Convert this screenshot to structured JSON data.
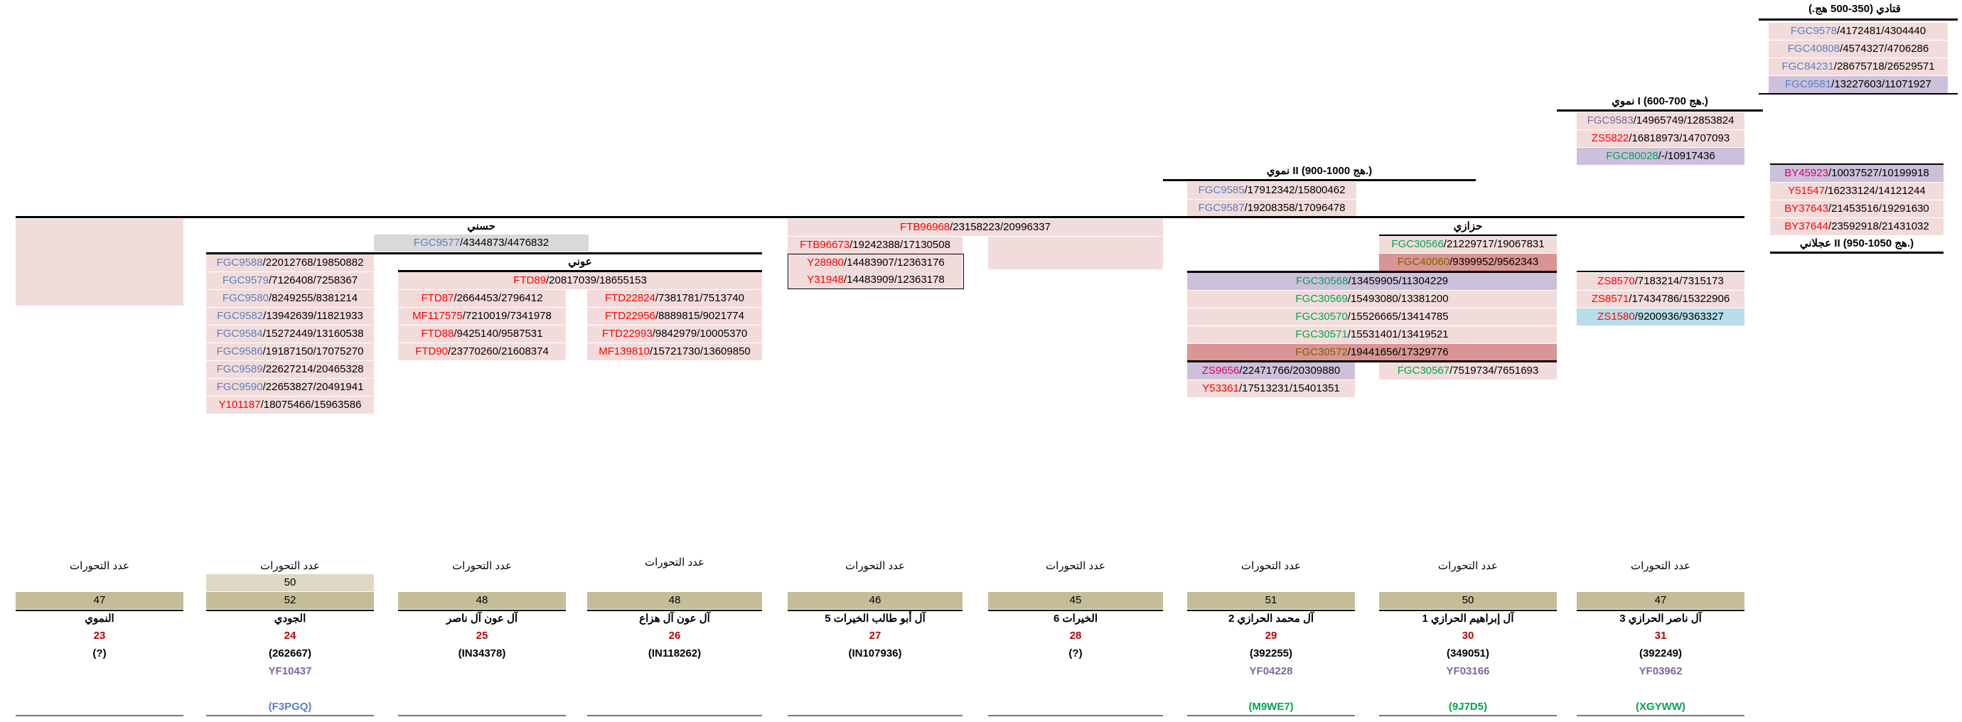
{
  "headers": {
    "qatadi": "قتادي (350-500 هج.)",
    "numawi1": "نموي I (600-700 هج.)",
    "numawi2": "نموي II (900-1000 هج.)",
    "ajlani2": "عجلاني II (950-1050 هج.)",
    "hasani": "حسني",
    "awni": "عوني",
    "hazzazi": "حزازي"
  },
  "qatadi_rows": [
    {
      "snp": "FGC9578",
      "pos": "/4172481/4304440"
    },
    {
      "snp": "FGC40808",
      "pos": "/4574327/4706286"
    },
    {
      "snp": "FGC84231",
      "pos": "/28675718/26529571"
    },
    {
      "snp": "FGC9581",
      "pos": "/13227603/11071927"
    }
  ],
  "numawi1_rows": [
    {
      "snp": "FGC9583",
      "pos": "/14965749/12853824"
    },
    {
      "snp": "ZS5822",
      "pos": "/16818973/14707093"
    },
    {
      "snp": "FGC80028",
      "pos": "/-/10917436"
    }
  ],
  "numawi2_rows": [
    {
      "snp": "FGC9585",
      "pos": "/17912342/15800462"
    },
    {
      "snp": "FGC9587",
      "pos": "/19208358/17096478"
    }
  ],
  "by_rows": [
    {
      "snp": "BY45923",
      "pos": "/10037527/10199918"
    },
    {
      "snp": "Y51547",
      "pos": "/16233124/14121244"
    },
    {
      "snp": "BY37643",
      "pos": "/21453516/19291630"
    },
    {
      "snp": "BY37644",
      "pos": "/23592918/21431032"
    }
  ],
  "hasani_row": {
    "snp": "FGC9577",
    "pos": "/4344873/4476832"
  },
  "awni_row": {
    "snp": "FTD89",
    "pos": "/20817039/18655153"
  },
  "juudi_rows": [
    {
      "snp": "FGC9588",
      "pos": "/22012768/19850882"
    },
    {
      "snp": "FGC9579",
      "pos": "/7126408/7258367"
    },
    {
      "snp": "FGC9580",
      "pos": "/8249255/8381214"
    },
    {
      "snp": "FGC9582",
      "pos": "/13942639/11821933"
    },
    {
      "snp": "FGC9584",
      "pos": "/15272449/13160538"
    },
    {
      "snp": "FGC9586",
      "pos": "/19187150/17075270"
    },
    {
      "snp": "FGC9589",
      "pos": "/22627214/20465328"
    },
    {
      "snp": "FGC9590",
      "pos": "/22653827/20491941"
    },
    {
      "snp": "Y101187",
      "pos": "/18075466/15963586"
    }
  ],
  "awn_nasir_rows": [
    {
      "snp": "FTD87",
      "pos": "/2664453/2796412"
    },
    {
      "snp": "MF117575",
      "pos": "/7210019/7341978"
    },
    {
      "snp": "FTD88",
      "pos": "/9425140/9587531"
    },
    {
      "snp": "FTD90",
      "pos": "/23770260/21608374"
    }
  ],
  "awn_hazza_rows": [
    {
      "snp": "FTD22824",
      "pos": "/7381781/7513740"
    },
    {
      "snp": "FTD22956",
      "pos": "/8889815/9021774"
    },
    {
      "snp": "FTD22993",
      "pos": "/9842979/10005370"
    },
    {
      "snp": "MF139810",
      "pos": "/15721730/13609850"
    }
  ],
  "khayrat_top": {
    "snp": "FTB96968",
    "pos": "/23158223/20996337"
  },
  "khayrat5_rows": [
    {
      "snp": "FTB96673",
      "pos": "/19242388/17130508"
    },
    {
      "snp": "Y28980",
      "pos": "/14483907/12363176"
    },
    {
      "snp": "Y31948",
      "pos": "/14483909/12363178"
    }
  ],
  "hazzazi_rows": [
    {
      "snp": "FGC30566",
      "pos": "/21229717/19067831"
    },
    {
      "snp": "FGC40060",
      "pos": "/9399952/9562343"
    }
  ],
  "muhammad_rows": [
    {
      "snp": "FGC30568",
      "pos": "/13459905/11304229"
    },
    {
      "snp": "FGC30569",
      "pos": "/15493080/13381200"
    },
    {
      "snp": "FGC30570",
      "pos": "/15526665/13414785"
    },
    {
      "snp": "FGC30571",
      "pos": "/15531401/13419521"
    },
    {
      "snp": "FGC30572",
      "pos": "/19441656/17329776"
    },
    {
      "snp": "ZS9656",
      "pos": "/22471766/20309880"
    },
    {
      "snp": "Y53361",
      "pos": "/17513231/15401351"
    }
  ],
  "ibrahim_row": {
    "snp": "FGC30567",
    "pos": "/7519734/7651693"
  },
  "nasir_rows": [
    {
      "snp": "ZS8570",
      "pos": "/7183214/7315173"
    },
    {
      "snp": "ZS8571",
      "pos": "/17434786/15322906"
    },
    {
      "snp": "ZS1580",
      "pos": "/9200936/9363327"
    }
  ],
  "mutations_label": "عدد التحورات",
  "columns": [
    {
      "count": "47",
      "name": "النموي",
      "num": "23",
      "code": "(?)",
      "yf": "",
      "hap": ""
    },
    {
      "count": "52",
      "count2": "50",
      "name": "الجودي",
      "num": "24",
      "code": "(262667)",
      "yf": "YF10437",
      "hap": "(F3PGQ)"
    },
    {
      "count": "48",
      "name": "آل عون آل ناصر",
      "num": "25",
      "code": "(IN34378)",
      "yf": "",
      "hap": ""
    },
    {
      "count": "48",
      "name": "آل عون آل هزاع",
      "num": "26",
      "code": "(IN118262)",
      "yf": "",
      "hap": ""
    },
    {
      "count": "46",
      "name": "آل أبو طالب الخيرات 5",
      "num": "27",
      "code": "(IN107936)",
      "yf": "",
      "hap": ""
    },
    {
      "count": "45",
      "name": "الخيرات 6",
      "num": "28",
      "code": "(?)",
      "yf": "",
      "hap": ""
    },
    {
      "count": "51",
      "name": "آل محمد الحرازي 2",
      "num": "29",
      "code": "(392255)",
      "yf": "YF04228",
      "hap": "(M9WE7)"
    },
    {
      "count": "50",
      "name": "آل إبراهيم الحرازي 1",
      "num": "30",
      "code": "(349051)",
      "yf": "YF03166",
      "hap": "(9J7D5)"
    },
    {
      "count": "47",
      "name": "آل ناصر الحرازي 3",
      "num": "31",
      "code": "(392249)",
      "yf": "YF03962",
      "hap": "(XGYWW)"
    }
  ],
  "colors": {
    "pink": "#f2dcdb",
    "lavender": "#ccc0da",
    "darkred": "#d99594",
    "tan": "#c4bd97",
    "cyan": "#b7dde8"
  }
}
